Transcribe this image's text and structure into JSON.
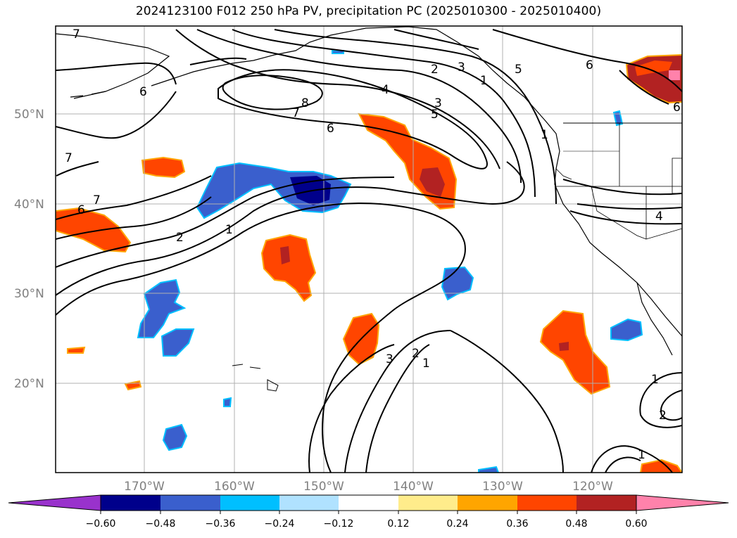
{
  "title": "2024123100 F012 250 hPa PV, precipitation PC (2025010300 - 2025010400)",
  "lat_labels": [
    "50°N",
    "40°N",
    "30°N",
    "20°N"
  ],
  "lon_labels": [
    "170°W",
    "160°W",
    "150°W",
    "140°W",
    "130°W",
    "120°W"
  ],
  "contour_labels": [
    "7",
    "6",
    "2",
    "3",
    "5",
    "4",
    "3",
    "5",
    "8",
    "7",
    "6",
    "6",
    "1",
    "6",
    "1",
    "7",
    "7",
    "6",
    "2",
    "1",
    "4",
    "3",
    "2",
    "1",
    "1",
    "2",
    "1"
  ],
  "colorbar": {
    "ticks": [
      "−0.60",
      "−0.48",
      "−0.36",
      "−0.24",
      "−0.12",
      "0.12",
      "0.24",
      "0.36",
      "0.48",
      "0.60"
    ],
    "colors": [
      "#9932cc",
      "#00008b",
      "#3a5fcd",
      "#00bfff",
      "#b0e2ff",
      "#ffffff",
      "#ffec8b",
      "#ffa500",
      "#ff4500",
      "#b22222",
      "#ff82ab"
    ]
  }
}
